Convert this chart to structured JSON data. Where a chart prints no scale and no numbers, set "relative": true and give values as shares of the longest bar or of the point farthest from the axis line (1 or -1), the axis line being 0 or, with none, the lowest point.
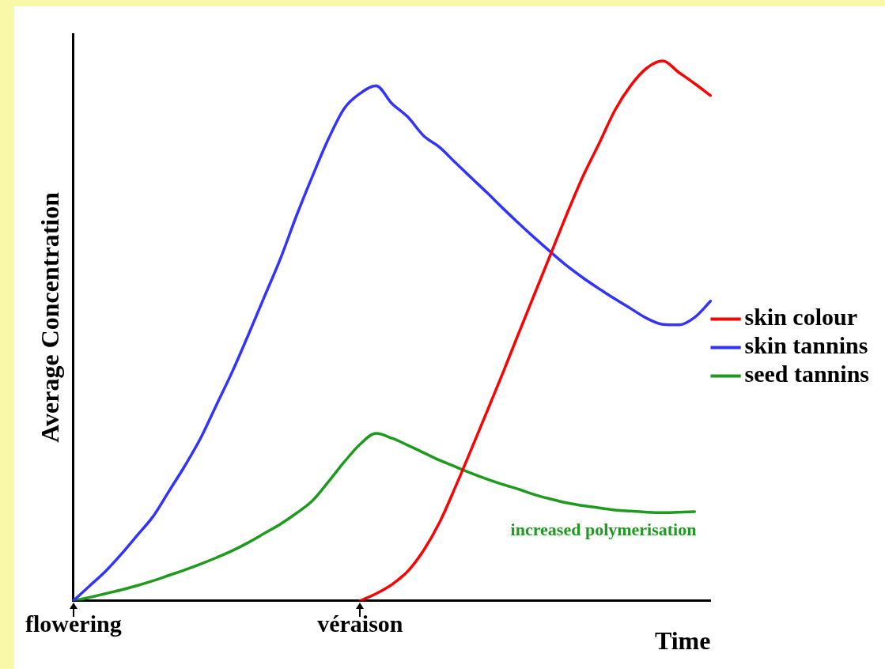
{
  "chart_data": {
    "type": "line",
    "relative": true,
    "xlabel": "Time",
    "ylabel": "Average Concentration",
    "categories": [
      "flowering",
      null,
      null,
      null,
      null,
      null,
      null,
      null,
      null,
      null,
      null,
      null,
      null,
      null,
      null,
      null,
      null,
      null,
      "véraison",
      null,
      null,
      null,
      null,
      null,
      null,
      null,
      null,
      null,
      null,
      null,
      null,
      null,
      null,
      null,
      null,
      null,
      null,
      null,
      null,
      null,
      null
    ],
    "tick_labels": "x",
    "grid": false,
    "legend": "right",
    "marker": "none",
    "line_style": "solid",
    "annotations": [
      "increased polymerisation"
    ],
    "series": [
      {
        "name": "skin colour",
        "color": "#ff0000",
        "values": [
          null,
          null,
          null,
          null,
          null,
          null,
          null,
          null,
          null,
          null,
          null,
          null,
          null,
          null,
          null,
          null,
          null,
          null,
          0,
          0.013,
          0.03,
          0.055,
          0.094,
          0.146,
          0.212,
          0.282,
          0.353,
          0.425,
          0.499,
          0.572,
          0.645,
          0.718,
          0.787,
          0.847,
          0.909,
          0.955,
          0.987,
          1,
          0.979,
          0.958,
          0.936
        ]
      },
      {
        "name": "skin tannins",
        "color": "#3333ff",
        "values": [
          0,
          0.027,
          0.054,
          0.086,
          0.121,
          0.156,
          0.203,
          0.25,
          0.302,
          0.364,
          0.426,
          0.494,
          0.564,
          0.634,
          0.713,
          0.786,
          0.855,
          0.912,
          0.94,
          0.954,
          0.921,
          0.896,
          0.861,
          0.84,
          0.811,
          0.783,
          0.755,
          0.726,
          0.698,
          0.671,
          0.645,
          0.62,
          0.598,
          0.578,
          0.559,
          0.541,
          0.523,
          0.512,
          0.511,
          0.525,
          0.555
        ]
      },
      {
        "name": "seed tannins",
        "color": "#1e9a1e",
        "values": [
          0,
          0.006,
          0.013,
          0.02,
          0.028,
          0.037,
          0.047,
          0.057,
          0.068,
          0.08,
          0.093,
          0.108,
          0.125,
          0.142,
          0.162,
          0.185,
          0.22,
          0.257,
          0.29,
          0.31,
          0.301,
          0.288,
          0.274,
          0.26,
          0.248,
          0.236,
          0.225,
          0.215,
          0.206,
          0.196,
          0.188,
          0.181,
          0.176,
          0.172,
          0.168,
          0.166,
          0.164,
          0.163,
          0.164,
          0.165,
          null
        ]
      }
    ]
  }
}
